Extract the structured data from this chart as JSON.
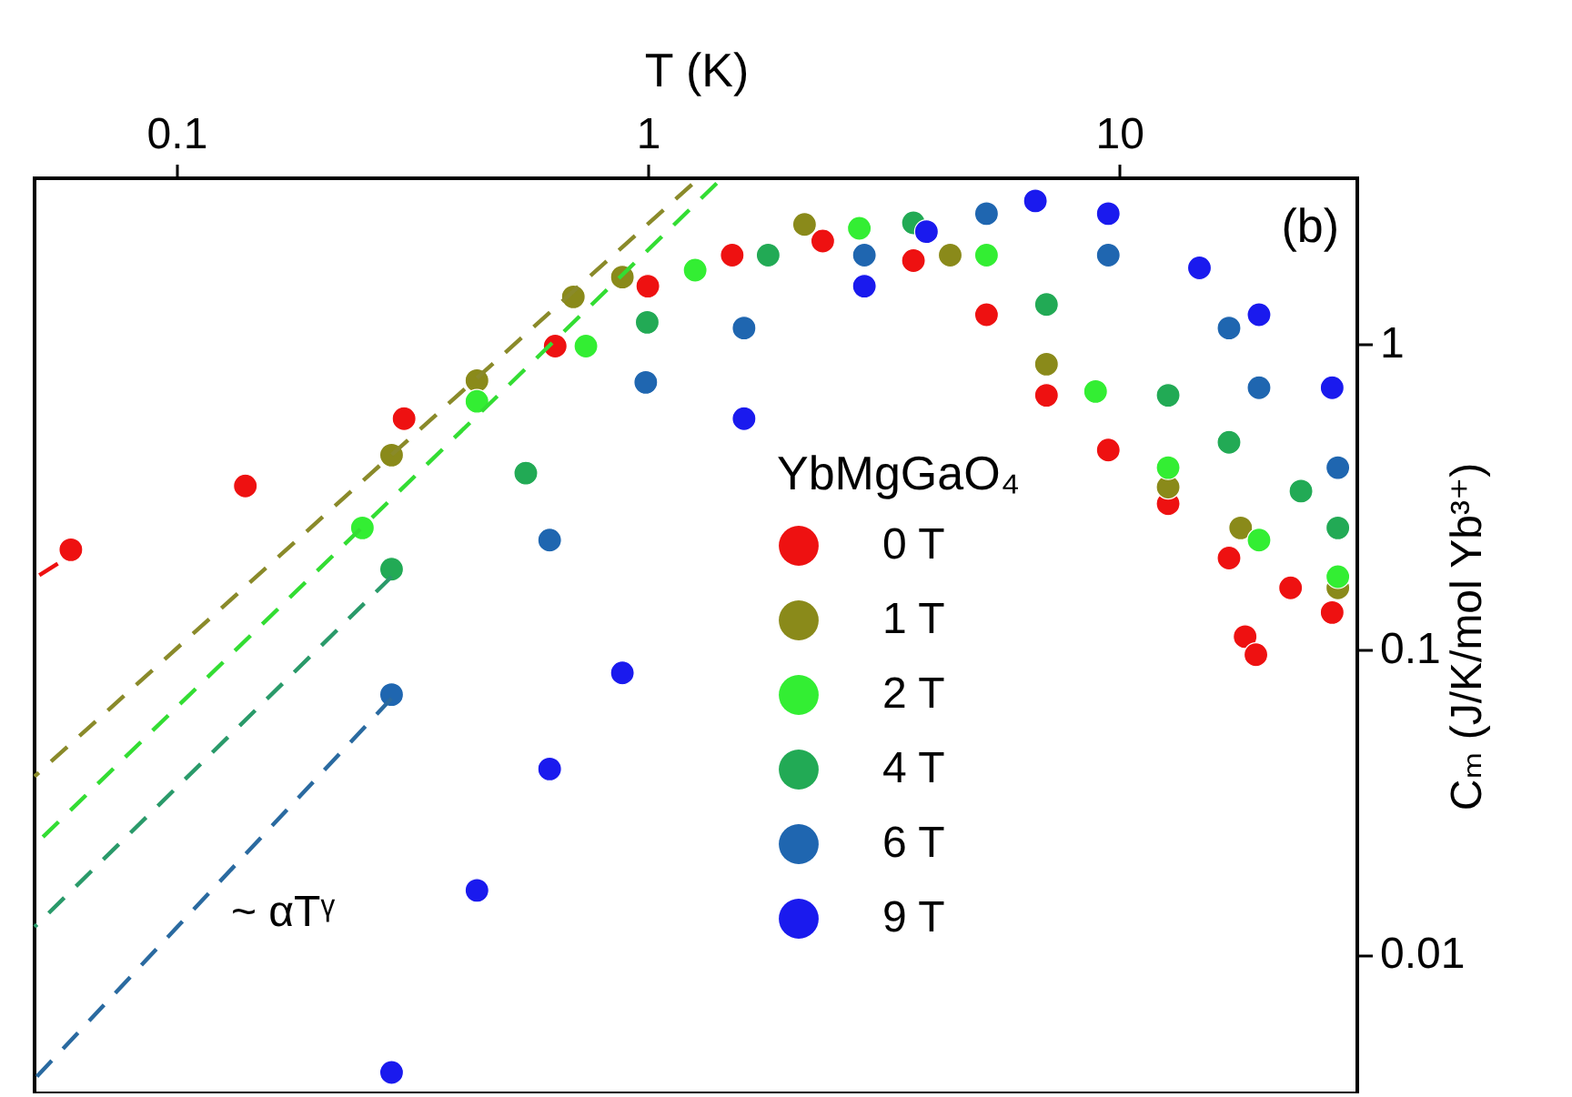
{
  "chart_data": {
    "type": "scatter",
    "xlabel": "T (K)",
    "ylabel": "Cₘ (J/K/mol Yb³⁺)",
    "legend_title": "YbMgGaO₄",
    "log": "xy",
    "legend": "bottom",
    "marker": "circle",
    "xlim": [
      0.05,
      32
    ],
    "xticks": [
      0.1,
      1,
      10
    ],
    "ylim": [
      0.0035,
      3.5
    ],
    "yticks": [
      0.01,
      0.1,
      1
    ],
    "annotations": [
      "(b)",
      "~ αTᵞ"
    ],
    "series": [
      {
        "name": "0 T",
        "color": "#ee1111",
        "x": [
          0.0597,
          0.14,
          0.304,
          0.636,
          1.0,
          1.51,
          2.35,
          3.66,
          5.23,
          7.01,
          9.48,
          12.7,
          17.1,
          23.1,
          28.3,
          18.5,
          19.5
        ],
        "values": [
          0.212,
          0.343,
          0.57,
          0.986,
          1.55,
          1.96,
          2.18,
          1.88,
          1.25,
          0.68,
          0.45,
          0.3,
          0.199,
          0.159,
          0.132,
          0.11,
          0.096
        ]
      },
      {
        "name": "1 T",
        "color": "#8a8a1a",
        "x": [
          0.286,
          0.434,
          0.695,
          0.883,
          2.15,
          4.38,
          7.01,
          12.7,
          18.1,
          29.1
        ],
        "values": [
          0.433,
          0.76,
          1.43,
          1.66,
          2.47,
          1.96,
          0.86,
          0.34,
          0.25,
          0.159
        ]
      },
      {
        "name": "2 T",
        "color": "#33ee33",
        "x": [
          0.248,
          0.434,
          0.739,
          1.26,
          2.81,
          5.23,
          8.91,
          12.7,
          19.8,
          29.1
        ],
        "values": [
          0.25,
          0.65,
          0.986,
          1.75,
          2.4,
          1.96,
          0.7,
          0.394,
          0.228,
          0.173
        ]
      },
      {
        "name": "4 T",
        "color": "#22aa55",
        "x": [
          0.286,
          0.551,
          0.997,
          1.8,
          3.66,
          7.01,
          12.7,
          17.1,
          24.3,
          29.1
        ],
        "values": [
          0.183,
          0.378,
          1.18,
          1.96,
          2.5,
          1.35,
          0.68,
          0.477,
          0.33,
          0.25
        ]
      },
      {
        "name": "6 T",
        "color": "#1f66b0",
        "x": [
          0.286,
          0.619,
          0.99,
          1.6,
          2.88,
          5.23,
          9.48,
          17.1,
          19.8,
          29.1
        ],
        "values": [
          0.071,
          0.228,
          0.75,
          1.13,
          1.96,
          2.68,
          1.96,
          1.13,
          0.72,
          0.394
        ]
      },
      {
        "name": "9 T",
        "color": "#1a1aee",
        "x": [
          0.286,
          0.434,
          0.619,
          0.883,
          1.6,
          2.88,
          3.9,
          6.64,
          9.48,
          14.8,
          19.8,
          28.3
        ],
        "values": [
          0.0041,
          0.0162,
          0.0405,
          0.0837,
          0.57,
          1.55,
          2.34,
          2.95,
          2.68,
          1.78,
          1.25,
          0.72
        ]
      },
      {
        "type": "line",
        "line_style": "dashed",
        "marker": "none",
        "color": "#ee1111",
        "x": [
          0.05,
          0.056
        ],
        "values": [
          0.171,
          0.191
        ]
      },
      {
        "type": "line",
        "line_style": "dashed",
        "marker": "none",
        "color": "#8a8a2a",
        "x": [
          0.05,
          1.24
        ],
        "values": [
          0.0383,
          3.34
        ]
      },
      {
        "type": "line",
        "line_style": "dashed",
        "marker": "none",
        "color": "#33dd33",
        "x": [
          0.05,
          1.4
        ],
        "values": [
          0.0228,
          3.37
        ]
      },
      {
        "type": "line",
        "line_style": "dashed",
        "marker": "none",
        "color": "#2a9a6a",
        "x": [
          0.05,
          0.286
        ],
        "values": [
          0.0123,
          0.173
        ]
      },
      {
        "type": "line",
        "line_style": "dashed",
        "marker": "none",
        "color": "#2a6aa0",
        "x": [
          0.05,
          0.286
        ],
        "values": [
          0.0039,
          0.069
        ]
      }
    ]
  }
}
